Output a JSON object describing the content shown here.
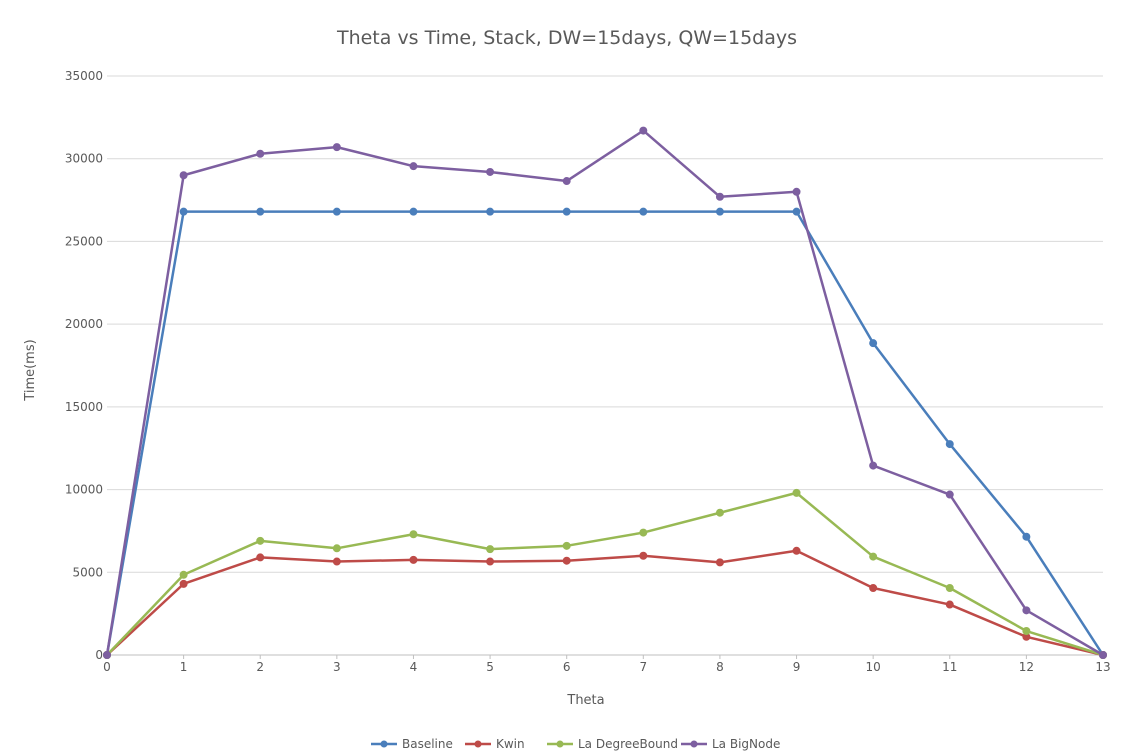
{
  "chart_data": {
    "type": "line",
    "title": "Theta vs Time, Stack, DW=15days, QW=15days",
    "xlabel": "Theta",
    "ylabel": "Time(ms)",
    "x": [
      0,
      1,
      2,
      3,
      4,
      5,
      6,
      7,
      8,
      9,
      10,
      11,
      12,
      13
    ],
    "ylim": [
      0,
      35000
    ],
    "yticks": [
      0,
      5000,
      10000,
      15000,
      20000,
      25000,
      30000,
      35000
    ],
    "grid": true,
    "legend_position": "bottom",
    "series": [
      {
        "name": "Baseline",
        "color": "#4a7ebb",
        "values": [
          0,
          26800,
          26800,
          26800,
          26800,
          26800,
          26800,
          26800,
          26800,
          26800,
          18850,
          12750,
          7150,
          0
        ]
      },
      {
        "name": "Kwin",
        "color": "#be4b48",
        "values": [
          0,
          4300,
          5900,
          5650,
          5750,
          5650,
          5700,
          6000,
          5600,
          6300,
          4050,
          3050,
          1100,
          0
        ]
      },
      {
        "name": "La DegreeBound",
        "color": "#98b954",
        "values": [
          0,
          4850,
          6900,
          6450,
          7300,
          6400,
          6600,
          7400,
          8600,
          9800,
          5950,
          4050,
          1450,
          0
        ]
      },
      {
        "name": "La BigNode",
        "color": "#7d5fa0",
        "values": [
          0,
          29000,
          30300,
          30700,
          29550,
          29200,
          28650,
          31700,
          27700,
          28000,
          11450,
          9700,
          2700,
          0
        ]
      }
    ]
  }
}
